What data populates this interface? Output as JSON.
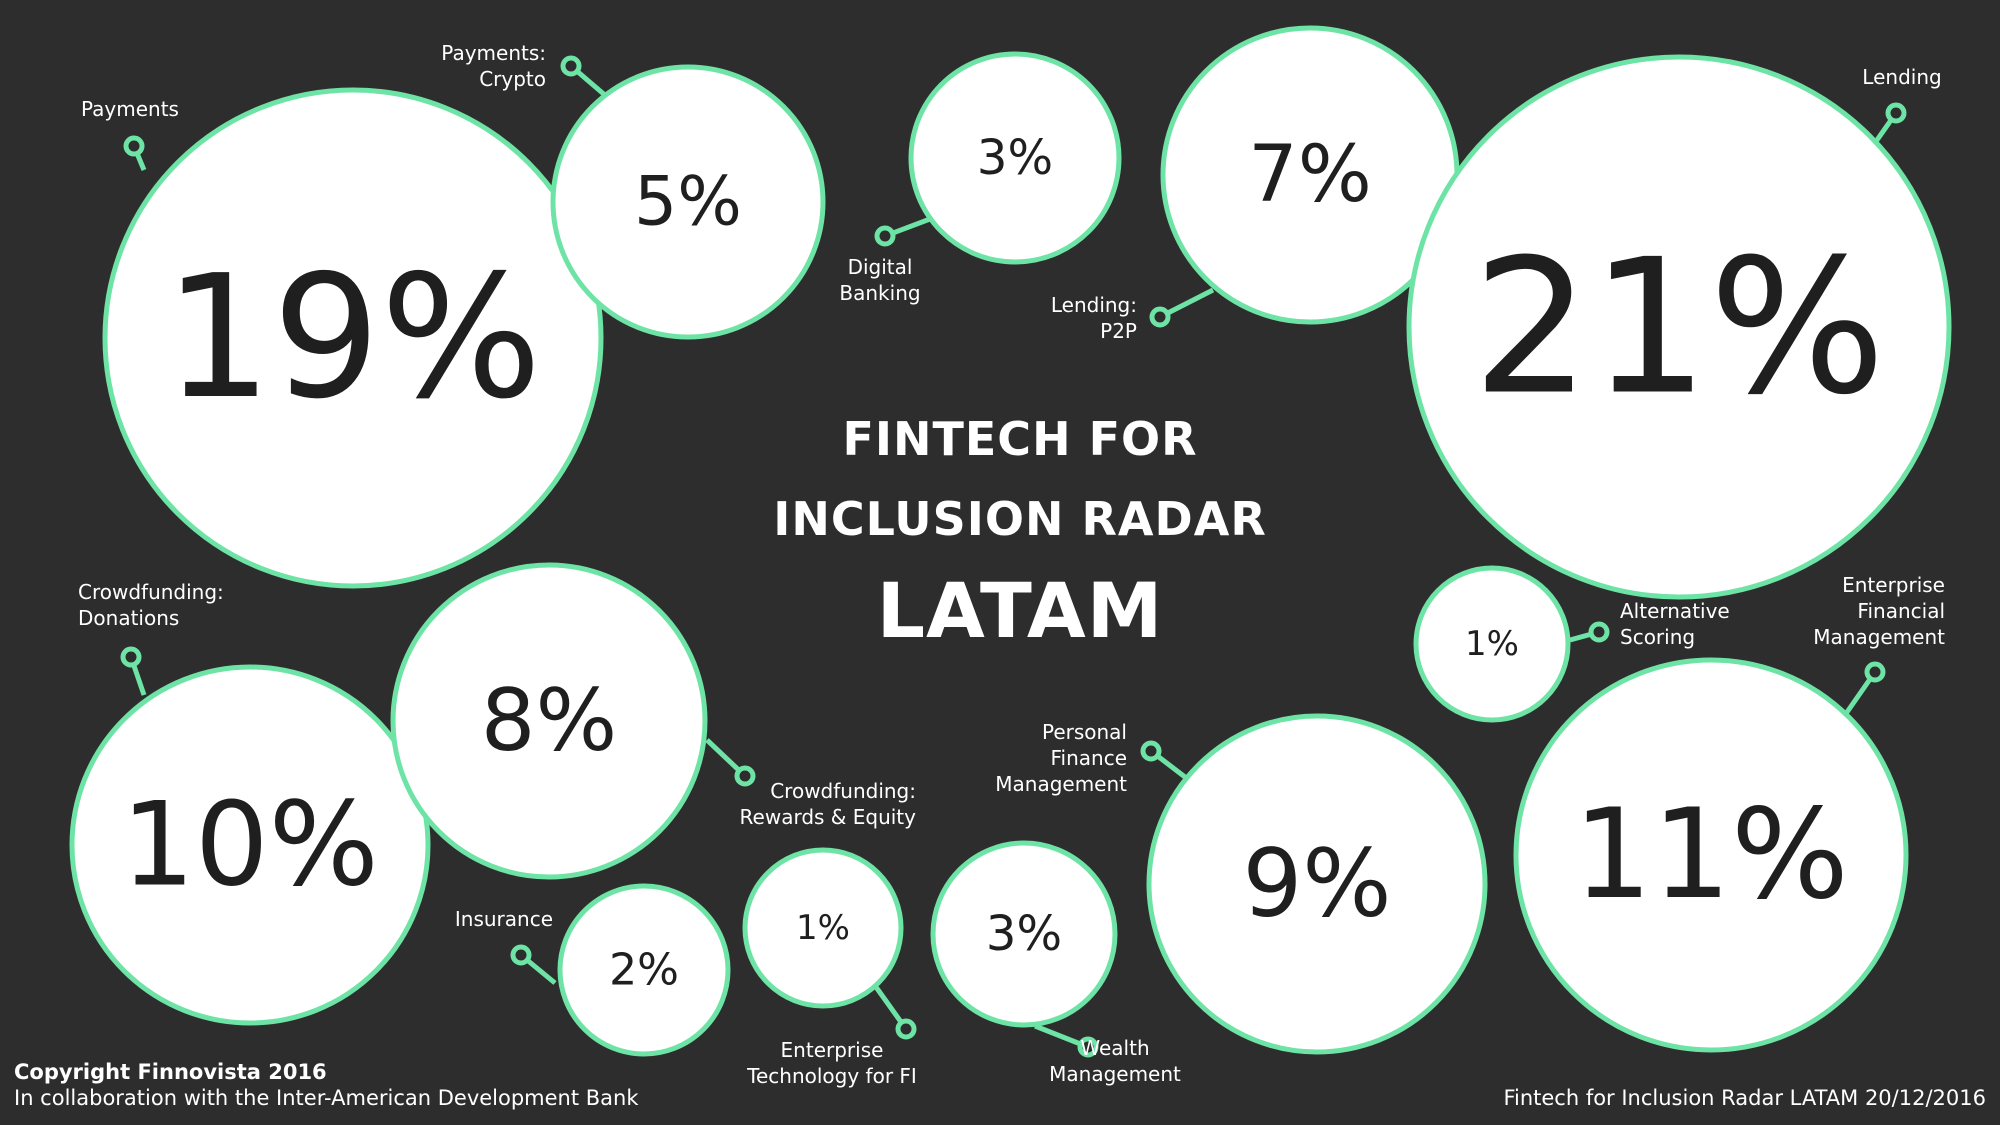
{
  "title": {
    "line1": "FINTECH FOR",
    "line2": "INCLUSION RADAR",
    "line3": "LATAM"
  },
  "footer": {
    "copyright": "Copyright Finnovista 2016",
    "collaboration": "In collaboration with the Inter-American Development Bank",
    "radar": "Fintech for Inclusion Radar LATAM  20/12/2016"
  },
  "colors": {
    "background": "#2d2d2d",
    "accent": "#6ee3a6",
    "bubble": "#ffffff",
    "value_text": "#1f1f1f",
    "label_text": "#ffffff"
  },
  "segments": [
    {
      "id": "payments",
      "label": [
        "Payments"
      ],
      "percent": 19
    },
    {
      "id": "payments-crypto",
      "label": [
        "Payments:",
        "Crypto"
      ],
      "percent": 5
    },
    {
      "id": "digital-banking",
      "label": [
        "Digital",
        "Banking"
      ],
      "percent": 3
    },
    {
      "id": "lending-p2p",
      "label": [
        "Lending:",
        "P2P"
      ],
      "percent": 7
    },
    {
      "id": "lending",
      "label": [
        "Lending"
      ],
      "percent": 21
    },
    {
      "id": "crowdfunding-donations",
      "label": [
        "Crowdfunding:",
        "Donations"
      ],
      "percent": 10
    },
    {
      "id": "crowdfunding-rewards-equity",
      "label": [
        "Crowdfunding:",
        "Rewards & Equity"
      ],
      "percent": 8
    },
    {
      "id": "alternative-scoring",
      "label": [
        "Alternative",
        "Scoring"
      ],
      "percent": 1
    },
    {
      "id": "enterprise-financial-management",
      "label": [
        "Enterprise",
        "Financial",
        "Management"
      ],
      "percent": 11
    },
    {
      "id": "personal-finance-management",
      "label": [
        "Personal",
        "Finance",
        "Management"
      ],
      "percent": 9
    },
    {
      "id": "insurance",
      "label": [
        "Insurance"
      ],
      "percent": 2
    },
    {
      "id": "enterprise-technology-fi",
      "label": [
        "Enterprise",
        "Technology for FI"
      ],
      "percent": 1
    },
    {
      "id": "wealth-management",
      "label": [
        "Wealth",
        "Management"
      ],
      "percent": 3
    }
  ]
}
